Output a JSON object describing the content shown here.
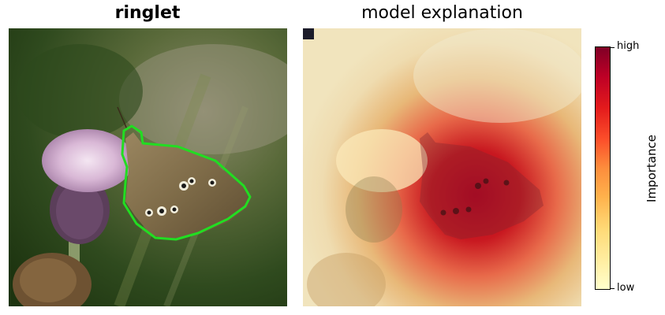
{
  "left_panel": {
    "title": "ringlet",
    "title_weight": "bold",
    "outline_color": "#22dd22"
  },
  "right_panel": {
    "title": "model explanation"
  },
  "colorbar": {
    "label": "Importance",
    "high_label": "high",
    "low_label": "low",
    "colormap": "YlOrRd",
    "colors": [
      "#ffffcc",
      "#ffeda0",
      "#fed976",
      "#feb24c",
      "#fd8d3c",
      "#fc4e2a",
      "#e31a1c",
      "#bd0026",
      "#800026"
    ]
  }
}
